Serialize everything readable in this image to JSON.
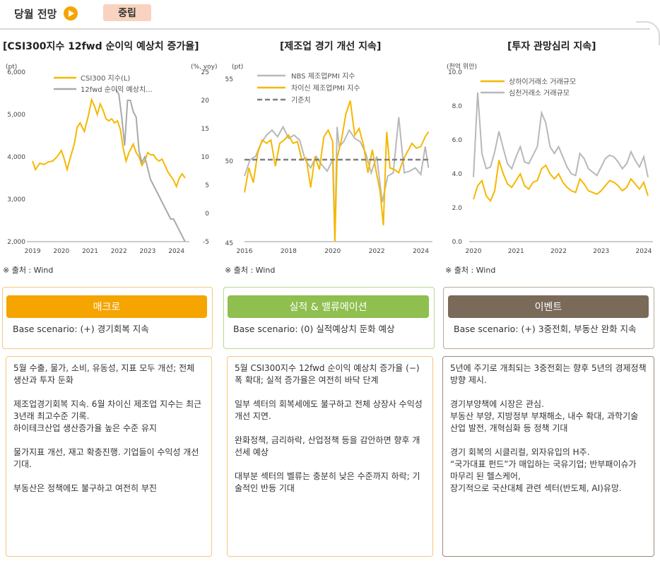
{
  "header": {
    "title": "당월 전망",
    "badge": "중립"
  },
  "colors": {
    "orange": "#f5b800",
    "gray": "#a9a9a9",
    "dash": "#7f7f7f",
    "macro": "#f5a400",
    "perf": "#8ebf4f",
    "event": "#7a6a5a"
  },
  "charts": [
    {
      "title": "[CSI300지수 12fwd 순이익 예상치 증가율]",
      "source": "※ 출처 : Wind",
      "left_unit": "(pt)",
      "right_unit": "(%, yoy)",
      "left_ticks": [
        "6,000",
        "5,000",
        "4,000",
        "3,000",
        "2,000"
      ],
      "right_ticks": [
        "25",
        "20",
        "15",
        "10",
        "5",
        "0",
        "-5"
      ],
      "x_ticks": [
        "2019",
        "2020",
        "2021",
        "2022",
        "2023",
        "2024"
      ],
      "legend": [
        "CSI300 지수(L)",
        "12fwd 순이익 예상치..."
      ]
    },
    {
      "title": "[제조업 경기 개선 지속]",
      "source": "※ 출처 : Wind",
      "left_unit": "(pt)",
      "left_ticks": [
        "55",
        "50",
        "45"
      ],
      "x_ticks": [
        "2016",
        "2018",
        "2020",
        "2022",
        "2024"
      ],
      "legend": [
        "NBS 제조업PMI 지수",
        "차이신 제조업PMI 지수",
        "기준치"
      ]
    },
    {
      "title": "[투자 관망심리 지속]",
      "source": "※ 출처 : Wind",
      "left_unit": "(천억 위안)",
      "left_ticks": [
        "10.0",
        "8.0",
        "6.0",
        "4.0",
        "2.0",
        "0.0"
      ],
      "x_ticks": [
        "2020",
        "2021",
        "2022",
        "2023",
        "2024"
      ],
      "legend": [
        "상하이거래소 거래규모",
        "심천거래소 거래규모"
      ]
    }
  ],
  "chart_data": [
    {
      "type": "line",
      "title": "[CSI300지수 12fwd 순이익 예상치 증가율]",
      "ylim_left": [
        2000,
        6000
      ],
      "ylim_right": [
        -5,
        25
      ],
      "series": [
        {
          "name": "CSI300 지수(L)",
          "axis": "left",
          "x": [
            2019.0,
            2019.1,
            2019.25,
            2019.4,
            2019.55,
            2019.7,
            2019.85,
            2020.0,
            2020.1,
            2020.2,
            2020.3,
            2020.45,
            2020.55,
            2020.65,
            2020.8,
            2020.95,
            2021.05,
            2021.15,
            2021.25,
            2021.35,
            2021.45,
            2021.55,
            2021.65,
            2021.75,
            2021.85,
            2021.95,
            2022.05,
            2022.15,
            2022.25,
            2022.35,
            2022.5,
            2022.6,
            2022.7,
            2022.8,
            2022.9,
            2023.0,
            2023.1,
            2023.2,
            2023.3,
            2023.4,
            2023.5,
            2023.6,
            2023.7,
            2023.8,
            2023.9,
            2024.0,
            2024.1,
            2024.2,
            2024.3
          ],
          "y": [
            3900,
            3700,
            3850,
            3820,
            3880,
            3900,
            4000,
            4150,
            3950,
            3700,
            3950,
            4300,
            4700,
            4800,
            4600,
            5000,
            5350,
            5200,
            5000,
            5250,
            5100,
            4900,
            4850,
            4900,
            4800,
            4850,
            4650,
            4200,
            3900,
            4100,
            4300,
            4100,
            4000,
            3800,
            3900,
            4100,
            4050,
            4050,
            3950,
            3900,
            3950,
            3800,
            3650,
            3550,
            3450,
            3300,
            3500,
            3600,
            3500
          ]
        },
        {
          "name": "12fwd 순이익 예상치...",
          "axis": "right",
          "x": [
            2021.9,
            2022.0,
            2022.1,
            2022.2,
            2022.3,
            2022.4,
            2022.5,
            2022.6,
            2022.7,
            2022.8,
            2022.9,
            2023.0,
            2023.1,
            2023.2,
            2023.3,
            2023.4,
            2023.5,
            2023.6,
            2023.7,
            2023.8,
            2023.9,
            2024.0,
            2024.1,
            2024.2,
            2024.3
          ],
          "y": [
            22,
            21,
            17,
            12,
            20,
            20,
            18,
            17,
            11,
            9,
            10,
            8,
            6,
            5,
            4,
            3,
            2,
            1,
            0,
            -1,
            -1,
            -2,
            -3,
            -4,
            -5
          ]
        }
      ],
      "xlim": [
        2018.85,
        2024.45
      ]
    },
    {
      "type": "line",
      "title": "[제조업 경기 개선 지속]",
      "ylim": [
        45,
        55
      ],
      "xlim": [
        2016,
        2024.4
      ],
      "series": [
        {
          "name": "NBS 제조업PMI 지수",
          "x": [
            2016.0,
            2016.25,
            2016.5,
            2016.75,
            2017.0,
            2017.25,
            2017.5,
            2017.75,
            2018.0,
            2018.25,
            2018.5,
            2018.75,
            2019.0,
            2019.25,
            2019.5,
            2019.75,
            2020.0,
            2020.1,
            2020.2,
            2020.3,
            2020.5,
            2020.75,
            2021.0,
            2021.25,
            2021.5,
            2021.75,
            2022.0,
            2022.25,
            2022.5,
            2022.75,
            2023.0,
            2023.25,
            2023.5,
            2023.75,
            2024.0,
            2024.2,
            2024.35
          ],
          "y": [
            49.0,
            50.0,
            50.2,
            51.0,
            51.5,
            51.8,
            51.4,
            52.0,
            51.3,
            51.5,
            51.2,
            50.0,
            49.5,
            50.2,
            49.7,
            49.3,
            50.0,
            35.7,
            52.0,
            50.8,
            51.1,
            51.8,
            51.3,
            51.1,
            50.4,
            49.2,
            50.2,
            47.4,
            49.0,
            49.2,
            52.6,
            49.2,
            49.3,
            49.5,
            49.1,
            50.8,
            49.5
          ]
        },
        {
          "name": "차이신 제조업PMI 지수",
          "x": [
            2016.0,
            2016.2,
            2016.4,
            2016.6,
            2016.8,
            2017.0,
            2017.2,
            2017.4,
            2017.6,
            2017.8,
            2018.0,
            2018.2,
            2018.4,
            2018.6,
            2018.8,
            2019.0,
            2019.2,
            2019.4,
            2019.6,
            2019.8,
            2020.0,
            2020.1,
            2020.2,
            2020.4,
            2020.6,
            2020.8,
            2021.0,
            2021.2,
            2021.4,
            2021.6,
            2021.8,
            2022.0,
            2022.15,
            2022.3,
            2022.45,
            2022.6,
            2022.8,
            2023.0,
            2023.2,
            2023.4,
            2023.6,
            2023.8,
            2024.0,
            2024.2,
            2024.35
          ],
          "y": [
            48.0,
            49.5,
            48.6,
            50.4,
            51.2,
            51.0,
            51.2,
            49.6,
            51.0,
            51.2,
            51.5,
            51.0,
            51.1,
            50.0,
            50.1,
            48.3,
            50.2,
            49.4,
            51.4,
            51.8,
            51.1,
            40.3,
            50.1,
            51.2,
            52.8,
            53.6,
            51.5,
            51.9,
            50.9,
            49.2,
            50.6,
            49.1,
            48.1,
            46.0,
            51.7,
            49.5,
            49.4,
            49.2,
            50.0,
            50.5,
            51.0,
            50.7,
            50.8,
            51.4,
            51.7
          ]
        },
        {
          "name": "기준치",
          "x": [
            2016,
            2024.4
          ],
          "y": [
            50,
            50
          ]
        }
      ]
    },
    {
      "type": "line",
      "title": "[투자 관망심리 지속]",
      "ylim": [
        0,
        10
      ],
      "xlim": [
        2020,
        2024.15
      ],
      "series": [
        {
          "name": "상하이거래소 거래규모",
          "x": [
            2020.0,
            2020.1,
            2020.2,
            2020.3,
            2020.4,
            2020.5,
            2020.6,
            2020.7,
            2020.8,
            2020.9,
            2021.0,
            2021.1,
            2021.2,
            2021.3,
            2021.4,
            2021.5,
            2021.6,
            2021.7,
            2021.8,
            2021.9,
            2022.0,
            2022.1,
            2022.2,
            2022.3,
            2022.4,
            2022.5,
            2022.6,
            2022.7,
            2022.8,
            2022.9,
            2023.0,
            2023.1,
            2023.2,
            2023.3,
            2023.4,
            2023.5,
            2023.6,
            2023.7,
            2023.8,
            2023.9,
            2024.0,
            2024.1
          ],
          "y": [
            2.5,
            3.3,
            3.6,
            2.7,
            2.4,
            3.0,
            4.8,
            4.0,
            3.4,
            3.2,
            3.6,
            4.0,
            3.3,
            3.1,
            3.5,
            3.6,
            4.3,
            4.5,
            4.0,
            3.7,
            4.0,
            3.5,
            3.2,
            3.0,
            2.9,
            3.7,
            3.4,
            3.0,
            2.9,
            2.8,
            3.0,
            3.3,
            3.6,
            3.5,
            3.3,
            3.0,
            3.2,
            3.7,
            3.4,
            3.1,
            3.5,
            2.7
          ]
        },
        {
          "name": "심천거래소 거래규모",
          "x": [
            2020.0,
            2020.1,
            2020.2,
            2020.3,
            2020.4,
            2020.5,
            2020.6,
            2020.7,
            2020.8,
            2020.9,
            2021.0,
            2021.1,
            2021.2,
            2021.3,
            2021.4,
            2021.5,
            2021.6,
            2021.7,
            2021.8,
            2021.9,
            2022.0,
            2022.1,
            2022.2,
            2022.3,
            2022.4,
            2022.5,
            2022.6,
            2022.7,
            2022.8,
            2022.9,
            2023.0,
            2023.1,
            2023.2,
            2023.3,
            2023.4,
            2023.5,
            2023.6,
            2023.7,
            2023.8,
            2023.9,
            2024.0,
            2024.1
          ],
          "y": [
            3.8,
            8.8,
            5.2,
            4.3,
            4.4,
            5.3,
            6.5,
            5.5,
            4.6,
            4.3,
            5.0,
            5.6,
            4.7,
            4.6,
            5.1,
            5.6,
            7.6,
            7.0,
            5.6,
            5.2,
            5.6,
            5.0,
            4.4,
            4.0,
            3.9,
            5.2,
            4.9,
            4.3,
            4.1,
            3.9,
            4.4,
            4.9,
            5.1,
            5.0,
            4.7,
            4.3,
            4.6,
            5.3,
            4.8,
            4.4,
            5.0,
            3.8
          ]
        }
      ]
    }
  ],
  "panels": [
    {
      "head": "매크로",
      "sub": "Base scenario: (+) 경기회복 지속",
      "body": [
        "5월 수출, 물가, 소비, 유동성, 지표 모두 개선; 전체 생산과 투자 둔화",
        "제조업경기회복 지속. 6월 차이신 제조업 지수는 최근 3년래 최고수준 기록.\n하이테크산업 생산증가율 높은 수준 유지",
        "물가지표 개선, 재고 확충진행.  기업들이 수익성 개선 기대.",
        "부동산은 정책에도 불구하고 여전히 부진"
      ]
    },
    {
      "head": "실적 & 밸류에이션",
      "sub": "Base scenario: (0) 실적예상치 둔화 예상",
      "body": [
        "5월 CSI300지수 12fwd 순이익 예상치 증가율 (−) 폭 확대; 실적 증가율은 여전히 바닥 단계",
        "일부 섹터의 회복세에도 불구하고 전체 상장사 수익성 개선 지연.",
        "완화정책, 금리하락, 산업정책 등을 감안하면 향후 개선세 예상",
        "대부분 섹터의 벨류는 충분히 낮은 수준까지 하락; 기술적인 반등 기대"
      ]
    },
    {
      "head": "이벤트",
      "sub": "Base scenario: (+) 3중전회, 부동산 완화 지속",
      "body": [
        "5년에 주기로 개최되는 3중전회는 향후 5년의 경제정책 방향 제시.",
        "경기부양책에 시장은 관심.\n부동산 부양, 지방정부 부채해소, 내수 확대, 과학기술 산업 발전, 개혁심화 등 정책 기대",
        "경기 회복의 시클리컬, 외자유입의 H주.\n“국가대표 펀드”가 매입하는 국유기업; 반부패이슈가 마무리 된 헬스케어,\n장기적으로 국산대체 관련 섹터(반도체, AI)유망."
      ]
    }
  ]
}
